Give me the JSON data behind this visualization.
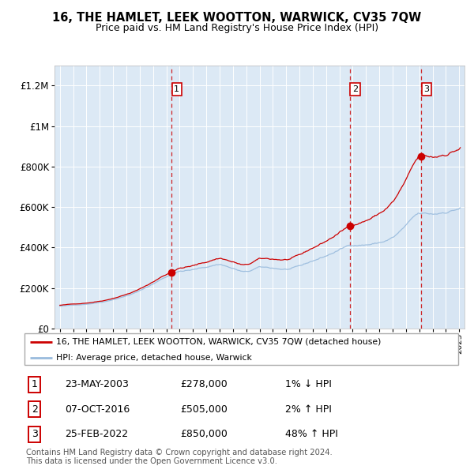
{
  "title_line1": "16, THE HAMLET, LEEK WOOTTON, WARWICK, CV35 7QW",
  "title_line2": "Price paid vs. HM Land Registry's House Price Index (HPI)",
  "background_color": "#dce9f5",
  "grid_color": "#ffffff",
  "sale_line_color": "#cc0000",
  "hpi_line_color": "#99bbdd",
  "dashed_line_color": "#cc0000",
  "ylim": [
    0,
    1300000
  ],
  "yticks": [
    0,
    200000,
    400000,
    600000,
    800000,
    1000000,
    1200000
  ],
  "ytick_labels": [
    "£0",
    "£200K",
    "£400K",
    "£600K",
    "£800K",
    "£1M",
    "£1.2M"
  ],
  "x_start_year": 1995,
  "x_end_year": 2025,
  "sales": [
    {
      "year": 2003.38,
      "price": 278000,
      "label": "1"
    },
    {
      "year": 2016.77,
      "price": 505000,
      "label": "2"
    },
    {
      "year": 2022.14,
      "price": 850000,
      "label": "3"
    }
  ],
  "table_rows": [
    {
      "num": "1",
      "date": "23-MAY-2003",
      "price": "£278,000",
      "change": "1% ↓ HPI"
    },
    {
      "num": "2",
      "date": "07-OCT-2016",
      "price": "£505,000",
      "change": "2% ↑ HPI"
    },
    {
      "num": "3",
      "date": "25-FEB-2022",
      "price": "£850,000",
      "change": "48% ↑ HPI"
    }
  ],
  "legend_entries": [
    "16, THE HAMLET, LEEK WOOTTON, WARWICK, CV35 7QW (detached house)",
    "HPI: Average price, detached house, Warwick"
  ],
  "footnote": "Contains HM Land Registry data © Crown copyright and database right 2024.\nThis data is licensed under the Open Government Licence v3.0."
}
